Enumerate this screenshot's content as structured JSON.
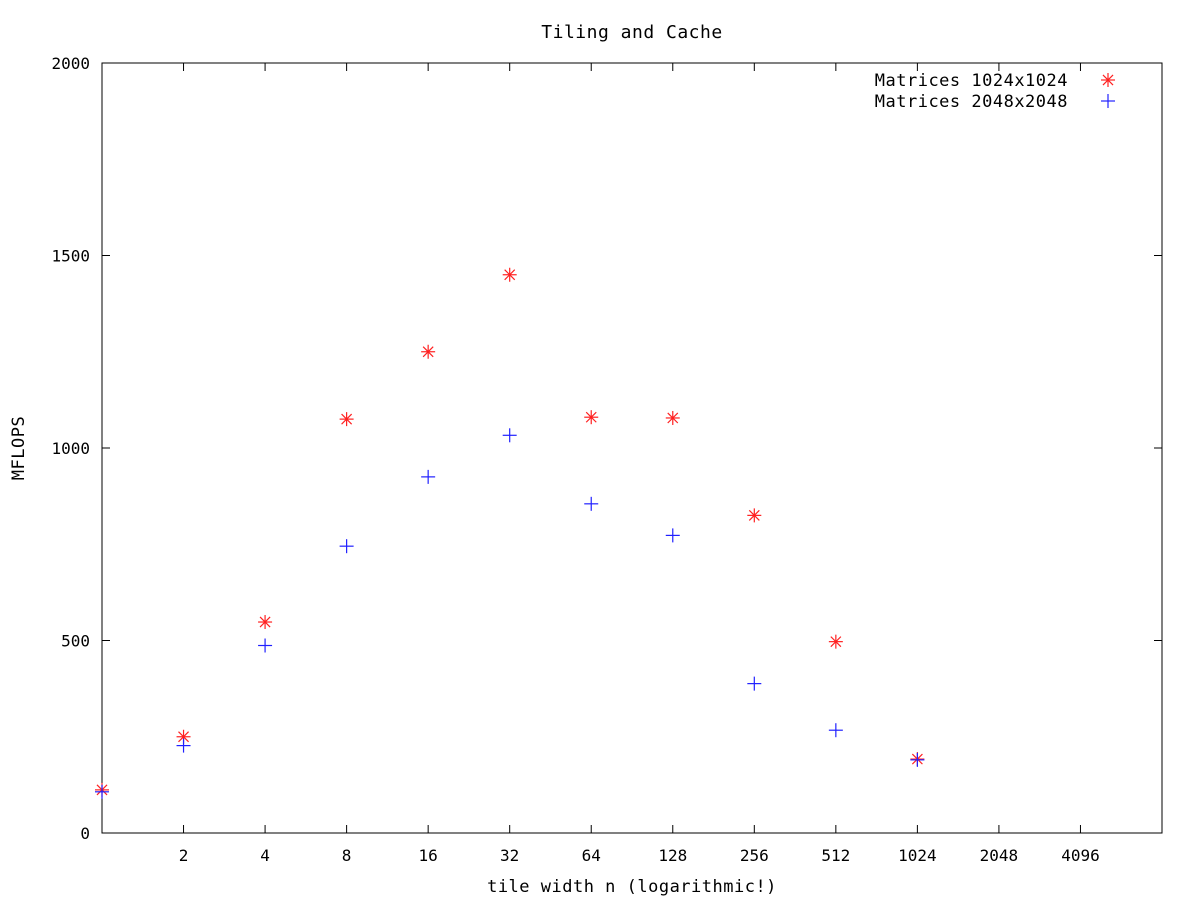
{
  "chart_data": {
    "type": "scatter",
    "title": "Tiling and Cache",
    "xlabel": "tile width n (logarithmic!)",
    "ylabel": "MFLOPS",
    "x_scale": "log2",
    "xlim": [
      1,
      8192
    ],
    "ylim": [
      0,
      2000
    ],
    "x_ticks": [
      2,
      4,
      8,
      16,
      32,
      64,
      128,
      256,
      512,
      1024,
      2048,
      4096
    ],
    "x_tick_labels": [
      "2",
      "4",
      "8",
      "16",
      "32",
      "64",
      "128",
      "256",
      "512",
      "1024",
      "2048",
      "4096"
    ],
    "y_ticks": [
      0,
      500,
      1000,
      1500,
      2000
    ],
    "y_tick_labels": [
      "0",
      "500",
      "1000",
      "1500",
      "2000"
    ],
    "grid": false,
    "legend_position": "top-right",
    "series": [
      {
        "name": "Matrices 1024x1024",
        "marker": "asterisk",
        "color": "#ff2020",
        "x": [
          1,
          2,
          4,
          8,
          16,
          32,
          64,
          128,
          256,
          512,
          1024
        ],
        "values": [
          112,
          250,
          548,
          1075,
          1250,
          1450,
          1080,
          1078,
          825,
          497,
          192
        ]
      },
      {
        "name": "Matrices 2048x2048",
        "marker": "plus",
        "color": "#2020ff",
        "x": [
          1,
          2,
          4,
          8,
          16,
          32,
          64,
          128,
          256,
          512,
          1024
        ],
        "values": [
          107,
          227,
          487,
          745,
          925,
          1033,
          855,
          773,
          388,
          267,
          190
        ]
      }
    ]
  }
}
